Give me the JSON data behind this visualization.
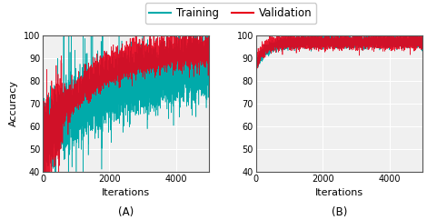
{
  "xlim": [
    0,
    5000
  ],
  "ylim": [
    40,
    100
  ],
  "yticks": [
    40,
    50,
    60,
    70,
    80,
    90,
    100
  ],
  "xticks": [
    0,
    2000,
    4000
  ],
  "xtick_labels": [
    "0",
    "2000",
    "4000"
  ],
  "xlabel": "Iterations",
  "ylabel": "Accuracy",
  "label_A": "(A)",
  "label_B": "(B)",
  "legend_training": "Training",
  "legend_validation": "Validation",
  "color_training": "#00AAAA",
  "color_validation": "#E8001A",
  "axis_fontsize": 8,
  "tick_fontsize": 7,
  "legend_fontsize": 8.5,
  "background_color": "#f0f0f0",
  "seed": 1234
}
